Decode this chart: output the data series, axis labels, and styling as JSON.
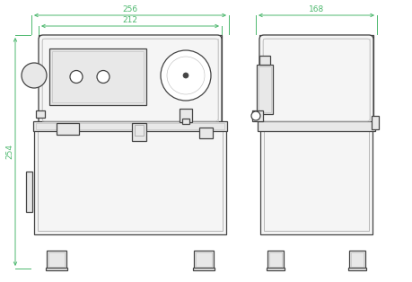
{
  "bg_color": "#ffffff",
  "dim_color": "#4db86e",
  "line_color": "#444444",
  "mid_color": "#888888",
  "light_color": "#bbbbbb",
  "fill_white": "#ffffff",
  "fill_light": "#f5f5f5",
  "fill_mid": "#e8e8e8",
  "fill_panel": "#e0e0e0",
  "dim_256": "256",
  "dim_212": "212",
  "dim_254": "254",
  "dim_168": "168",
  "figsize": [
    4.6,
    3.14
  ],
  "dpi": 100,
  "lw_thick": 0.9,
  "lw_mid": 0.6,
  "lw_thin": 0.4,
  "lw_dim": 0.7,
  "font_dim": 6.5
}
